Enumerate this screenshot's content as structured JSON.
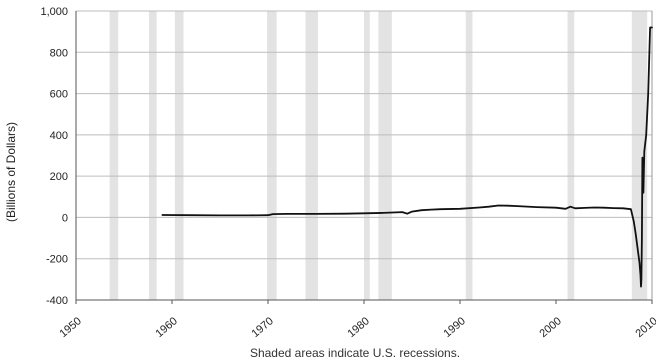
{
  "chart_data": {
    "type": "line",
    "title": "",
    "xlabel": "",
    "ylabel": "(Billions of Dollars)",
    "note": "Shaded areas indicate U.S. recessions.",
    "xlim": [
      1950,
      2010
    ],
    "ylim": [
      -400,
      1000
    ],
    "grid": "horizontal",
    "x_ticks": [
      "1950",
      "1960",
      "1970",
      "1980",
      "1990",
      "2000",
      "2010"
    ],
    "y_ticks": [
      "1,000",
      "800",
      "600",
      "400",
      "200",
      "0",
      "-200",
      "-400"
    ],
    "y_tick_values": [
      1000,
      800,
      600,
      400,
      200,
      0,
      -200,
      -400
    ],
    "x_tick_values": [
      1950,
      1960,
      1970,
      1980,
      1990,
      2000,
      2010
    ],
    "recession_color": "#e3e3e3",
    "line_color": "#111111",
    "recessions": [
      [
        1953.5,
        1954.4
      ],
      [
        1957.6,
        1958.4
      ],
      [
        1960.3,
        1961.2
      ],
      [
        1969.9,
        1970.9
      ],
      [
        1973.9,
        1975.2
      ],
      [
        1980.0,
        1980.6
      ],
      [
        1981.5,
        1982.9
      ],
      [
        1990.6,
        1991.3
      ],
      [
        2001.2,
        2001.9
      ],
      [
        2007.9,
        2009.5
      ]
    ],
    "series": [
      {
        "x": [
          1959,
          1962,
          1965,
          1968,
          1970,
          1970.5,
          1972,
          1975,
          1978,
          1980,
          1982,
          1984,
          1984.5,
          1985,
          1986,
          1987,
          1988,
          1990,
          1992,
          1993,
          1994,
          1995,
          1996,
          1998,
          2000,
          2001,
          2001.5,
          2002,
          2003,
          2004,
          2005,
          2006,
          2007,
          2007.8,
          2008.1,
          2008.3,
          2008.5,
          2008.7,
          2008.8,
          2008.85,
          2008.9,
          2008.95,
          2009.0,
          2009.05,
          2009.1,
          2009.2,
          2009.4,
          2009.6,
          2009.8,
          2010
        ],
        "y": [
          12,
          11,
          10,
          10,
          11,
          16,
          17,
          17,
          18,
          20,
          22,
          26,
          18,
          28,
          35,
          38,
          40,
          42,
          48,
          52,
          58,
          57,
          55,
          50,
          47,
          42,
          52,
          44,
          46,
          48,
          47,
          45,
          44,
          40,
          -20,
          -80,
          -150,
          -220,
          -280,
          -335,
          -300,
          -100,
          290,
          200,
          120,
          320,
          400,
          600,
          920,
          920
        ]
      }
    ]
  }
}
